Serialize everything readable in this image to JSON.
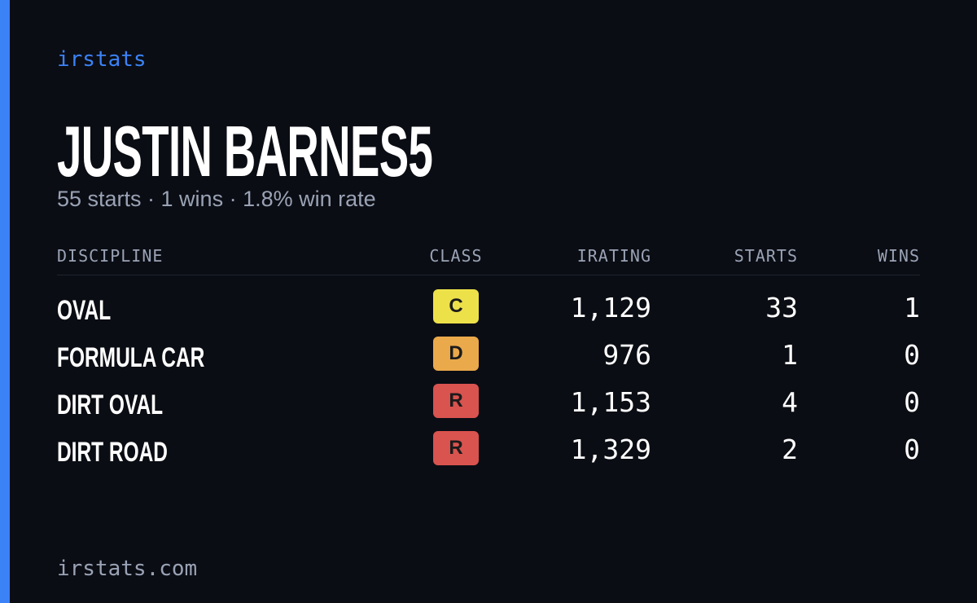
{
  "brand": "irstats",
  "header": {
    "title": "JUSTIN BARNES5",
    "subtitle": "55 starts · 1 wins · 1.8% win rate"
  },
  "table": {
    "columns": [
      "DISCIPLINE",
      "CLASS",
      "IRATING",
      "STARTS",
      "WINS"
    ],
    "rows": [
      {
        "discipline": "OVAL",
        "class": "C",
        "class_color": "#ede14a",
        "irating": "1,129",
        "starts": "33",
        "wins": "1"
      },
      {
        "discipline": "FORMULA CAR",
        "class": "D",
        "class_color": "#eaa94b",
        "irating": "976",
        "starts": "1",
        "wins": "0"
      },
      {
        "discipline": "DIRT OVAL",
        "class": "R",
        "class_color": "#d9534f",
        "irating": "1,153",
        "starts": "4",
        "wins": "0"
      },
      {
        "discipline": "DIRT ROAD",
        "class": "R",
        "class_color": "#d9534f",
        "irating": "1,329",
        "starts": "2",
        "wins": "0"
      }
    ]
  },
  "footer": "irstats.com"
}
